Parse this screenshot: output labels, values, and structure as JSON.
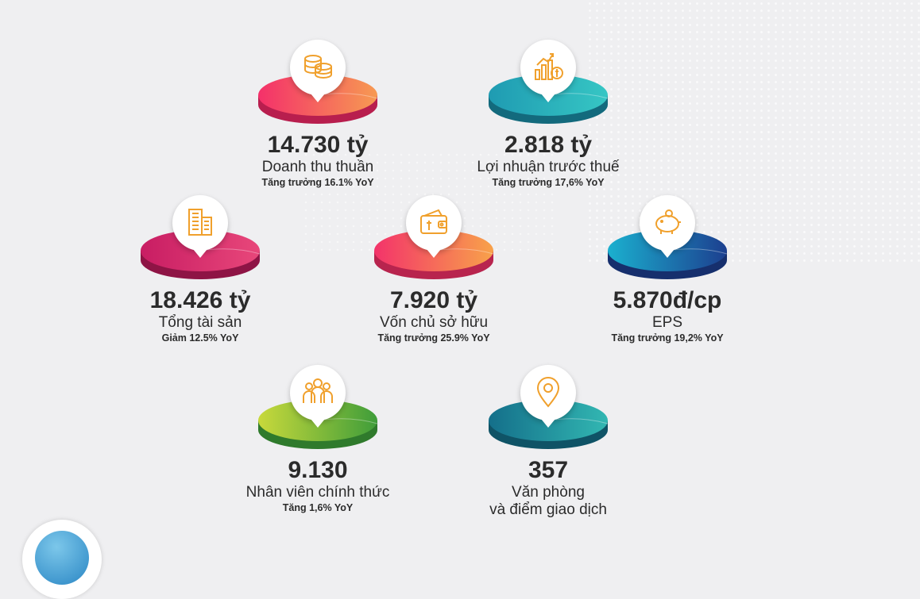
{
  "items": [
    {
      "key": "revenue",
      "value": "14.730 tỷ",
      "label": "Doanh thu thuần",
      "sub": "Tăng trưởng 16.1% YoY",
      "icon": "coins-icon"
    },
    {
      "key": "profit",
      "value": "2.818 tỷ",
      "label": "Lợi nhuận trước thuế",
      "sub": "Tăng trưởng 17,6% YoY",
      "icon": "growth-chart-dollar-icon"
    },
    {
      "key": "assets",
      "value": "18.426 tỷ",
      "label": "Tổng tài sản",
      "sub": "Giảm 12.5% YoY",
      "icon": "buildings-icon"
    },
    {
      "key": "equity",
      "value": "7.920 tỷ",
      "label": "Vốn chủ sở hữu",
      "sub": "Tăng trưởng 25.9% YoY",
      "icon": "wallet-icon"
    },
    {
      "key": "eps",
      "value": "5.870đ/cp",
      "label": "EPS",
      "sub": "Tăng trưởng 19,2% YoY",
      "icon": "piggy-bank-icon"
    },
    {
      "key": "staff",
      "value": "9.130",
      "label": "Nhân viên chính thức",
      "sub": "Tăng 1,6% YoY",
      "icon": "people-icon"
    },
    {
      "key": "offices",
      "value": "357",
      "label": "Văn phòng",
      "label2": "và điểm giao dịch",
      "icon": "location-pin-icon"
    }
  ],
  "colors": {
    "revenue": [
      "#f4306a",
      "#f79a52"
    ],
    "profit": [
      "#1f9bb2",
      "#36c6c4"
    ],
    "assets": [
      "#c81d63",
      "#e8477a"
    ],
    "equity": [
      "#f3336a",
      "#f8a24a"
    ],
    "eps": [
      "#1c3f8f",
      "#1bb0cf"
    ],
    "staff": [
      "#3f9d3a",
      "#c8d93b"
    ],
    "offices": [
      "#146f8a",
      "#32b7b2"
    ],
    "icon": "#f0a02c",
    "text": "#2b2b2b"
  }
}
